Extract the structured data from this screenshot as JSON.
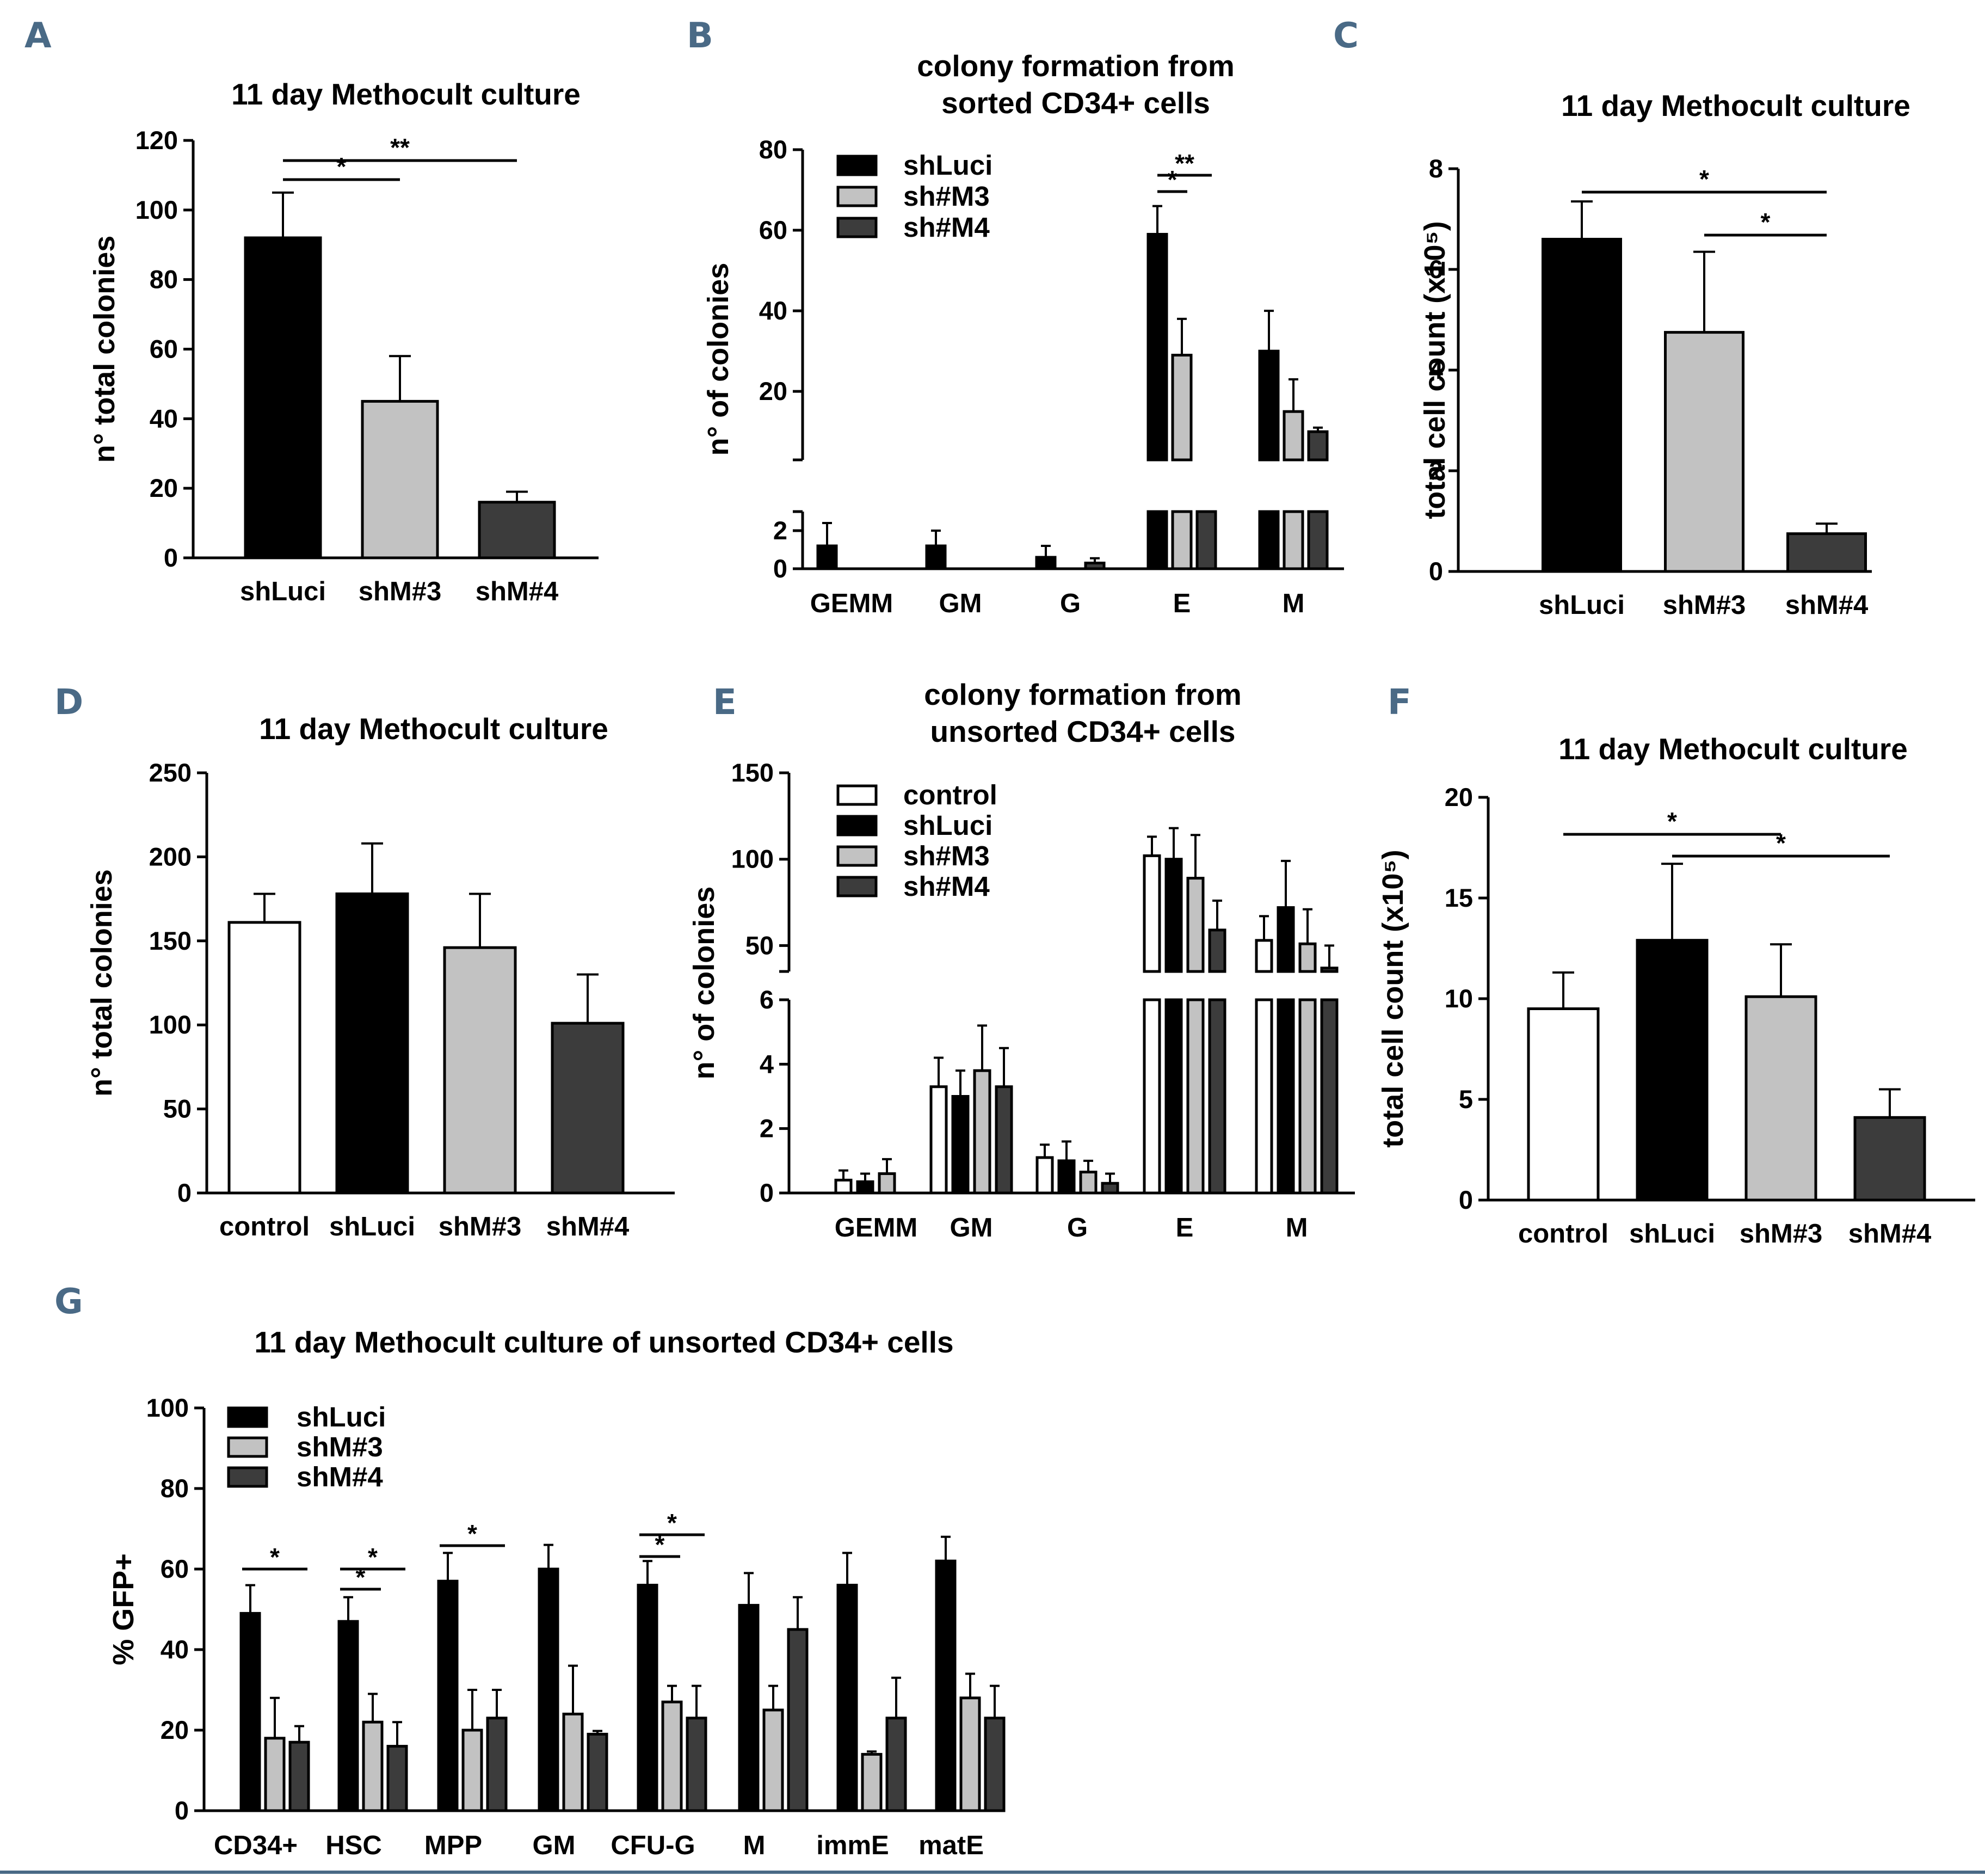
{
  "colors": {
    "control": "#ffffff",
    "shLuci": "#000000",
    "shM3": "#c2c2c2",
    "shM4": "#3c3c3c",
    "panel_letter": "#4a6a86",
    "rule": "#4a6a86"
  },
  "chart_data": [
    {
      "id": "A",
      "type": "bar",
      "letter": "A",
      "title": "11 day Methocult culture",
      "ylabel": "n° total colonies",
      "xlabel": "",
      "ylim": [
        0,
        120
      ],
      "yticks": [
        0,
        20,
        40,
        60,
        80,
        100,
        120
      ],
      "categories": [
        "shLuci",
        "shM#3",
        "shM#4"
      ],
      "values": [
        92,
        45,
        16
      ],
      "errors": [
        13,
        13,
        3
      ],
      "fills": [
        "shLuci",
        "shM3",
        "shM4"
      ],
      "significance": [
        {
          "from": 0,
          "to": 1,
          "label": "*"
        },
        {
          "from": 0,
          "to": 2,
          "label": "**"
        }
      ]
    },
    {
      "id": "B",
      "type": "bar",
      "letter": "B",
      "title": [
        "colony formation from",
        "sorted CD34+ cells"
      ],
      "ylabel": "n° of colonies",
      "xlabel": "",
      "broken_axis": {
        "lower": [
          0,
          3
        ],
        "upper": [
          3,
          80
        ]
      },
      "yticks_lower": [
        0,
        2
      ],
      "yticks_upper": [
        20,
        40,
        60,
        80
      ],
      "categories": [
        "GEMM",
        "GM",
        "G",
        "E",
        "M"
      ],
      "series": [
        {
          "name": "shLuci",
          "fill": "shLuci",
          "values": [
            1.2,
            1.2,
            0.6,
            59,
            30
          ],
          "errors": [
            1.2,
            0.8,
            0.6,
            7,
            10
          ]
        },
        {
          "name": "sh#M3",
          "fill": "shM3",
          "values": [
            0,
            0,
            0,
            29,
            15
          ],
          "errors": [
            0,
            0,
            0,
            9,
            8
          ]
        },
        {
          "name": "sh#M4",
          "fill": "shM4",
          "values": [
            0,
            0,
            0.3,
            3,
            10
          ],
          "errors": [
            0,
            0,
            0.25,
            3,
            1
          ]
        }
      ],
      "significance": [
        {
          "category": 3,
          "from": 0,
          "to": 1,
          "label": "*"
        },
        {
          "category": 3,
          "from": 0,
          "to": 2,
          "label": "**"
        }
      ]
    },
    {
      "id": "C",
      "type": "bar",
      "letter": "C",
      "title": "11 day Methocult culture",
      "ylabel": "total cell count (x10⁵)",
      "xlabel": "",
      "ylim": [
        0,
        8
      ],
      "yticks": [
        0,
        2,
        4,
        6,
        8
      ],
      "categories": [
        "shLuci",
        "shM#3",
        "shM#4"
      ],
      "values": [
        6.6,
        4.75,
        0.75
      ],
      "errors": [
        0.75,
        1.6,
        0.2
      ],
      "fills": [
        "shLuci",
        "shM3",
        "shM4"
      ],
      "significance": [
        {
          "from": 0,
          "to": 2,
          "label": "*"
        },
        {
          "from": 1,
          "to": 2,
          "label": "*"
        }
      ]
    },
    {
      "id": "D",
      "type": "bar",
      "letter": "D",
      "title": "11 day Methocult culture",
      "ylabel": "n° total colonies",
      "xlabel": "",
      "ylim": [
        0,
        250
      ],
      "yticks": [
        0,
        50,
        100,
        150,
        200,
        250
      ],
      "categories": [
        "control",
        "shLuci",
        "shM#3",
        "shM#4"
      ],
      "values": [
        161,
        178,
        146,
        101
      ],
      "errors": [
        17,
        30,
        32,
        29
      ],
      "fills": [
        "control",
        "shLuci",
        "shM3",
        "shM4"
      ],
      "significance": []
    },
    {
      "id": "E",
      "type": "bar",
      "letter": "E",
      "title": [
        "colony formation from",
        "unsorted CD34+ cells"
      ],
      "ylabel": "n° of colonies",
      "xlabel": "",
      "broken_axis": {
        "lower": [
          0,
          6
        ],
        "upper": [
          35,
          150
        ]
      },
      "yticks_lower": [
        0,
        2,
        4,
        6
      ],
      "yticks_upper": [
        50,
        100,
        150
      ],
      "categories": [
        "GEMM",
        "GM",
        "G",
        "E",
        "M"
      ],
      "series": [
        {
          "name": "control",
          "fill": "control",
          "values": [
            0.4,
            3.3,
            1.1,
            102,
            53
          ],
          "errors": [
            0.3,
            0.9,
            0.4,
            11,
            14
          ]
        },
        {
          "name": "shLuci",
          "fill": "shLuci",
          "values": [
            0.35,
            3.0,
            1.0,
            100,
            72
          ],
          "errors": [
            0.25,
            0.8,
            0.6,
            18,
            27
          ]
        },
        {
          "name": "sh#M3",
          "fill": "shM3",
          "values": [
            0.6,
            3.8,
            0.65,
            89,
            51
          ],
          "errors": [
            0.45,
            1.4,
            0.35,
            25,
            20
          ]
        },
        {
          "name": "sh#M4",
          "fill": "shM4",
          "values": [
            0,
            3.3,
            0.3,
            59,
            37
          ],
          "errors": [
            0,
            1.2,
            0.3,
            17,
            13
          ]
        }
      ],
      "significance": []
    },
    {
      "id": "F",
      "type": "bar",
      "letter": "F",
      "title": "11 day Methocult culture",
      "ylabel": "total cell count (x10⁵)",
      "xlabel": "",
      "ylim": [
        0,
        20
      ],
      "yticks": [
        0,
        5,
        10,
        15,
        20
      ],
      "categories": [
        "control",
        "shLuci",
        "shM#3",
        "shM#4"
      ],
      "values": [
        9.5,
        12.9,
        10.1,
        4.1
      ],
      "errors": [
        1.8,
        3.8,
        2.6,
        1.4
      ],
      "fills": [
        "control",
        "shLuci",
        "shM3",
        "shM4"
      ],
      "significance": [
        {
          "from": 0,
          "to": 2,
          "label": "*"
        },
        {
          "from": 1,
          "to": 3,
          "label": "*"
        }
      ]
    },
    {
      "id": "G",
      "type": "bar",
      "letter": "G",
      "title": "11 day Methocult culture of unsorted CD34+ cells",
      "ylabel": "% GFP+",
      "xlabel": "",
      "ylim": [
        0,
        100
      ],
      "yticks": [
        0,
        20,
        40,
        60,
        80,
        100
      ],
      "categories": [
        "CD34+",
        "HSC",
        "MPP",
        "GM",
        "CFU-G",
        "M",
        "immE",
        "matE"
      ],
      "series": [
        {
          "name": "shLuci",
          "fill": "shLuci",
          "values": [
            49,
            47,
            57,
            60,
            56,
            51,
            56,
            62
          ],
          "errors": [
            7,
            6,
            7,
            6,
            6,
            8,
            8,
            6
          ]
        },
        {
          "name": "shM#3",
          "fill": "shM3",
          "values": [
            18,
            22,
            20,
            24,
            27,
            25,
            14,
            28
          ],
          "errors": [
            10,
            7,
            10,
            12,
            4,
            6,
            0.7,
            6
          ]
        },
        {
          "name": "shM#4",
          "fill": "shM4",
          "values": [
            17,
            16,
            23,
            19,
            23,
            45,
            23,
            23
          ],
          "errors": [
            4,
            6,
            7,
            0.8,
            8,
            8,
            10,
            8
          ]
        }
      ],
      "significance": [
        {
          "category": 0,
          "from": 0,
          "to": 2,
          "label": "*"
        },
        {
          "category": 1,
          "from": 0,
          "to": 1,
          "label": "*"
        },
        {
          "category": 1,
          "from": 0,
          "to": 2,
          "label": "*"
        },
        {
          "category": 2,
          "from": 0,
          "to": 2,
          "label": "*"
        },
        {
          "category": 4,
          "from": 0,
          "to": 1,
          "label": "*"
        },
        {
          "category": 4,
          "from": 0,
          "to": 2,
          "label": "*"
        }
      ]
    }
  ]
}
